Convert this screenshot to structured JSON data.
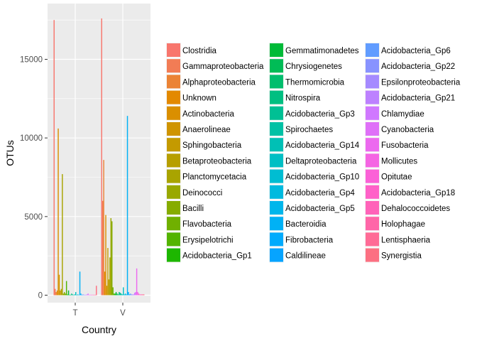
{
  "chart_data": {
    "type": "bar",
    "xlabel": "Country",
    "ylabel": "OTUs",
    "categories": [
      "T",
      "V"
    ],
    "ylim": [
      0,
      18000
    ],
    "yticks": [
      0,
      5000,
      10000,
      15000
    ],
    "grid": true,
    "legend_position": "right",
    "series": [
      {
        "name": "Clostridia",
        "values": [
          17500,
          17600
        ]
      },
      {
        "name": "Gammaproteobacteria",
        "values": [
          400,
          6000
        ]
      },
      {
        "name": "Alphaproteobacteria",
        "values": [
          200,
          8600
        ]
      },
      {
        "name": "Unknown",
        "values": [
          300,
          1500
        ]
      },
      {
        "name": "Actinobacteria",
        "values": [
          10600,
          5100
        ]
      },
      {
        "name": "Anaerolineae",
        "values": [
          1300,
          600
        ]
      },
      {
        "name": "Sphingobacteria",
        "values": [
          300,
          3000
        ]
      },
      {
        "name": "Betaproteobacteria",
        "values": [
          400,
          1000
        ]
      },
      {
        "name": "Planctomycetacia",
        "values": [
          7700,
          2400
        ]
      },
      {
        "name": "Deinococci",
        "values": [
          100,
          4900
        ]
      },
      {
        "name": "Bacilli",
        "values": [
          200,
          4700
        ]
      },
      {
        "name": "Flavobacteria",
        "values": [
          100,
          500
        ]
      },
      {
        "name": "Erysipelotrichi",
        "values": [
          900,
          100
        ]
      },
      {
        "name": "Acidobacteria_Gp1",
        "values": [
          50,
          100
        ]
      },
      {
        "name": "Gemmatimonadetes",
        "values": [
          300,
          200
        ]
      },
      {
        "name": "Chrysiogenetes",
        "values": [
          30,
          100
        ]
      },
      {
        "name": "Thermomicrobia",
        "values": [
          30,
          50
        ]
      },
      {
        "name": "Nitrospira",
        "values": [
          100,
          200
        ]
      },
      {
        "name": "Acidobacteria_Gp3",
        "values": [
          50,
          150
        ]
      },
      {
        "name": "Spirochaetes",
        "values": [
          30,
          100
        ]
      },
      {
        "name": "Acidobacteria_Gp14",
        "values": [
          50,
          50
        ]
      },
      {
        "name": "Deltaproteobacteria",
        "values": [
          200,
          500
        ]
      },
      {
        "name": "Acidobacteria_Gp10",
        "values": [
          30,
          50
        ]
      },
      {
        "name": "Acidobacteria_Gp4",
        "values": [
          50,
          100
        ]
      },
      {
        "name": "Acidobacteria_Gp5",
        "values": [
          30,
          50
        ]
      },
      {
        "name": "Bacteroidia",
        "values": [
          1500,
          11400
        ]
      },
      {
        "name": "Fibrobacteria",
        "values": [
          100,
          200
        ]
      },
      {
        "name": "Caldilineae",
        "values": [
          30,
          50
        ]
      },
      {
        "name": "Acidobacteria_Gp6",
        "values": [
          50,
          100
        ]
      },
      {
        "name": "Acidobacteria_Gp22",
        "values": [
          30,
          50
        ]
      },
      {
        "name": "Epsilonproteobacteria",
        "values": [
          30,
          50
        ]
      },
      {
        "name": "Acidobacteria_Gp21",
        "values": [
          30,
          50
        ]
      },
      {
        "name": "Chlamydiae",
        "values": [
          50,
          150
        ]
      },
      {
        "name": "Cyanobacteria",
        "values": [
          100,
          200
        ]
      },
      {
        "name": "Fusobacteria",
        "values": [
          30,
          1700
        ]
      },
      {
        "name": "Mollicutes",
        "values": [
          30,
          200
        ]
      },
      {
        "name": "Opitutae",
        "values": [
          30,
          100
        ]
      },
      {
        "name": "Acidobacteria_Gp18",
        "values": [
          30,
          50
        ]
      },
      {
        "name": "Dehalococcoidetes",
        "values": [
          30,
          50
        ]
      },
      {
        "name": "Holophagae",
        "values": [
          30,
          50
        ]
      },
      {
        "name": "Lentisphaeria",
        "values": [
          30,
          50
        ]
      },
      {
        "name": "Synergistia",
        "values": [
          600,
          50
        ]
      }
    ]
  }
}
